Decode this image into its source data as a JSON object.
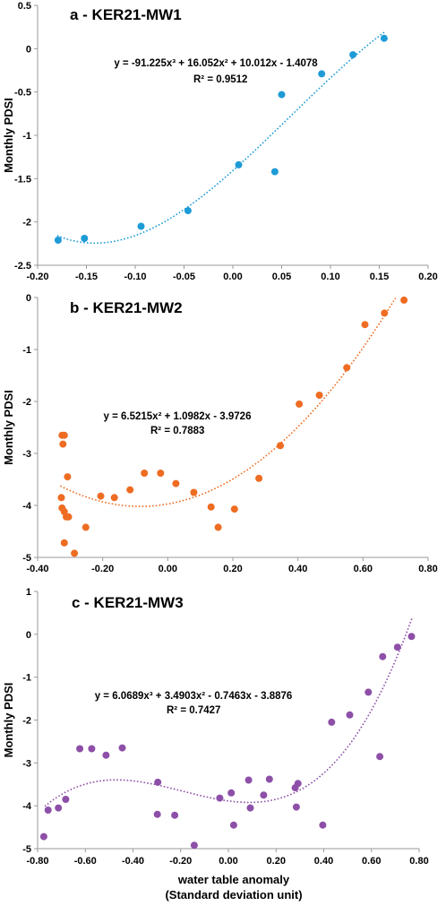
{
  "chart_data": [
    {
      "type": "scatter",
      "title": "a - KER21-MW1",
      "ylabel": "Monthly PDSI",
      "xlabel": "",
      "xlim": [
        -0.2,
        0.2
      ],
      "ylim": [
        -2.5,
        0.5
      ],
      "xticks": [
        "-0.20",
        "-0.15",
        "-0.10",
        "-0.05",
        "0.00",
        "0.05",
        "0.10",
        "0.15",
        "0.20"
      ],
      "yticks": [
        "-2.5",
        "-2",
        "-1.5",
        "-1",
        "-0.5",
        "0",
        "0.5"
      ],
      "color": "#1e9bd7",
      "equation": "y = -91.225x³ + 16.052x² + 10.012x - 1.4078",
      "r2": "R² = 0.9512",
      "trend_coeffs": [
        -91.225,
        16.052,
        10.012,
        -1.4078
      ],
      "trend_range": [
        -0.18,
        0.155
      ],
      "points": [
        [
          -0.179,
          -2.21
        ],
        [
          -0.152,
          -2.19
        ],
        [
          -0.094,
          -2.05
        ],
        [
          -0.046,
          -1.87
        ],
        [
          0.006,
          -1.34
        ],
        [
          0.043,
          -1.42
        ],
        [
          0.05,
          -0.53
        ],
        [
          0.091,
          -0.29
        ],
        [
          0.123,
          -0.07
        ],
        [
          0.155,
          0.12
        ]
      ]
    },
    {
      "type": "scatter",
      "title": "b - KER21-MW2",
      "ylabel": "Monthly PDSI",
      "xlabel": "",
      "xlim": [
        -0.4,
        0.8
      ],
      "ylim": [
        -5,
        0
      ],
      "xticks": [
        "-0.40",
        "-0.20",
        "0.00",
        "0.20",
        "0.40",
        "0.60",
        "0.80"
      ],
      "yticks": [
        "-5",
        "-4",
        "-3",
        "-2",
        "-1",
        "0"
      ],
      "color": "#ee6c22",
      "equation": "y = 6.5215x² + 1.0982x - 3.9726",
      "r2": "R² = 0.7883",
      "trend_coeffs": [
        0,
        6.5215,
        1.0982,
        -3.9726
      ],
      "trend_range": [
        -0.33,
        0.7
      ],
      "points": [
        [
          -0.325,
          -2.65
        ],
        [
          -0.318,
          -2.65
        ],
        [
          -0.322,
          -2.82
        ],
        [
          -0.327,
          -3.85
        ],
        [
          -0.325,
          -4.05
        ],
        [
          -0.318,
          -4.12
        ],
        [
          -0.312,
          -4.22
        ],
        [
          -0.305,
          -4.22
        ],
        [
          -0.308,
          -3.45
        ],
        [
          -0.318,
          -4.72
        ],
        [
          -0.287,
          -4.92
        ],
        [
          -0.252,
          -4.42
        ],
        [
          -0.206,
          -3.82
        ],
        [
          -0.164,
          -3.85
        ],
        [
          -0.116,
          -3.7
        ],
        [
          -0.072,
          -3.38
        ],
        [
          -0.022,
          -3.38
        ],
        [
          0.025,
          -3.58
        ],
        [
          0.08,
          -3.75
        ],
        [
          0.133,
          -4.03
        ],
        [
          0.155,
          -4.42
        ],
        [
          0.205,
          -4.07
        ],
        [
          0.28,
          -3.48
        ],
        [
          0.346,
          -2.85
        ],
        [
          0.404,
          -2.05
        ],
        [
          0.466,
          -1.88
        ],
        [
          0.55,
          -1.35
        ],
        [
          0.606,
          -0.52
        ],
        [
          0.666,
          -0.3
        ],
        [
          0.726,
          -0.05
        ]
      ]
    },
    {
      "type": "scatter",
      "title": "c - KER21-MW3",
      "ylabel": "Monthly PDSI",
      "xlabel": "water table anomaly",
      "xlabel2": "(Standard deviation unit)",
      "xlim": [
        -0.8,
        0.8
      ],
      "ylim": [
        -5,
        1
      ],
      "xticks": [
        "-0.80",
        "-0.60",
        "-0.40",
        "-0.20",
        "0.00",
        "0.20",
        "0.40",
        "0.60",
        "0.80"
      ],
      "yticks": [
        "-5",
        "-4",
        "-3",
        "-2",
        "-1",
        "0",
        "1"
      ],
      "color": "#8d4fa8",
      "equation": "y = 6.0689x³ + 3.4903x² - 0.7463x - 3.8876",
      "r2": "R² = 0.7427",
      "trend_coeffs": [
        6.0689,
        3.4903,
        -0.7463,
        -3.8876
      ],
      "trend_range": [
        -0.77,
        0.77
      ],
      "points": [
        [
          -0.774,
          -4.72
        ],
        [
          -0.756,
          -4.1
        ],
        [
          -0.713,
          -4.05
        ],
        [
          -0.682,
          -3.85
        ],
        [
          -0.623,
          -2.67
        ],
        [
          -0.573,
          -2.67
        ],
        [
          -0.513,
          -2.82
        ],
        [
          -0.445,
          -2.65
        ],
        [
          -0.296,
          -3.45
        ],
        [
          -0.298,
          -4.2
        ],
        [
          -0.225,
          -4.22
        ],
        [
          -0.143,
          -4.92
        ],
        [
          -0.036,
          -3.82
        ],
        [
          0.012,
          -3.7
        ],
        [
          0.022,
          -4.45
        ],
        [
          0.085,
          -3.4
        ],
        [
          0.092,
          -4.05
        ],
        [
          0.148,
          -3.75
        ],
        [
          0.172,
          -3.38
        ],
        [
          0.28,
          -3.58
        ],
        [
          0.292,
          -3.48
        ],
        [
          0.285,
          -4.03
        ],
        [
          0.396,
          -4.45
        ],
        [
          0.433,
          -2.05
        ],
        [
          0.509,
          -1.88
        ],
        [
          0.587,
          -1.35
        ],
        [
          0.635,
          -2.85
        ],
        [
          0.647,
          -0.52
        ],
        [
          0.709,
          -0.3
        ],
        [
          0.768,
          -0.05
        ]
      ]
    }
  ]
}
